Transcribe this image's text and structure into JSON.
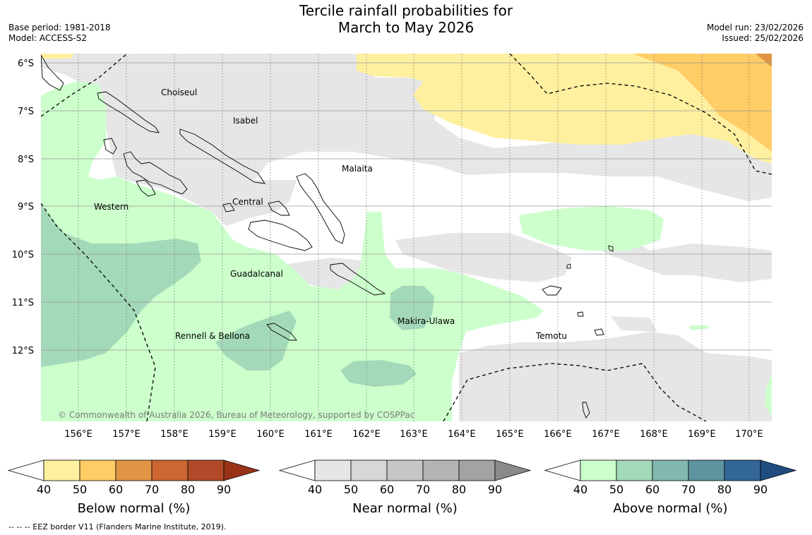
{
  "title_line1": "Tercile rainfall probabilities for",
  "title_line2": "March to May 2026",
  "base_period": "Base period: 1981-2018",
  "model": "Model: ACCESS-S2",
  "model_run": "Model run: 23/02/2026",
  "issued": "Issued: 25/02/2026",
  "copyright": "© Commonwealth of Australia 2026, Bureau of Meteorology, supported by COSPPac",
  "footnote": "--  --  -- EEZ border V11 (Flanders Marine Institute, 2019).",
  "lat_labels": [
    "6°S",
    "7°S",
    "8°S",
    "9°S",
    "10°S",
    "11°S",
    "12°S"
  ],
  "lon_labels": [
    "156°E",
    "157°E",
    "158°E",
    "159°E",
    "160°E",
    "161°E",
    "162°E",
    "163°E",
    "164°E",
    "165°E",
    "166°E",
    "167°E",
    "168°E",
    "169°E",
    "170°E"
  ],
  "provinces": [
    "Choiseul",
    "Isabel",
    "Malaita",
    "Western",
    "Central",
    "Guadalcanal",
    "Makira-Ulawa",
    "Rennell & Bellona",
    "Temotu"
  ],
  "colorbars": [
    {
      "label": "Below normal (%)",
      "ticks": [
        "40",
        "50",
        "60",
        "70",
        "80",
        "90"
      ],
      "colors": [
        "#fff0a0",
        "#ffcc66",
        "#e09444",
        "#cc6633",
        "#b04a28",
        "#993318"
      ]
    },
    {
      "label": "Near normal (%)",
      "ticks": [
        "40",
        "50",
        "60",
        "70",
        "80",
        "90"
      ],
      "colors": [
        "#e6e6e6",
        "#d7d7d7",
        "#c6c6c6",
        "#b4b4b4",
        "#a3a3a3",
        "#8a8a8a"
      ]
    },
    {
      "label": "Above normal (%)",
      "ticks": [
        "40",
        "50",
        "60",
        "70",
        "80",
        "90"
      ],
      "colors": [
        "#ccffcc",
        "#a3d9b9",
        "#83b8b0",
        "#5c94a0",
        "#336699",
        "#1f4d80"
      ]
    }
  ]
}
